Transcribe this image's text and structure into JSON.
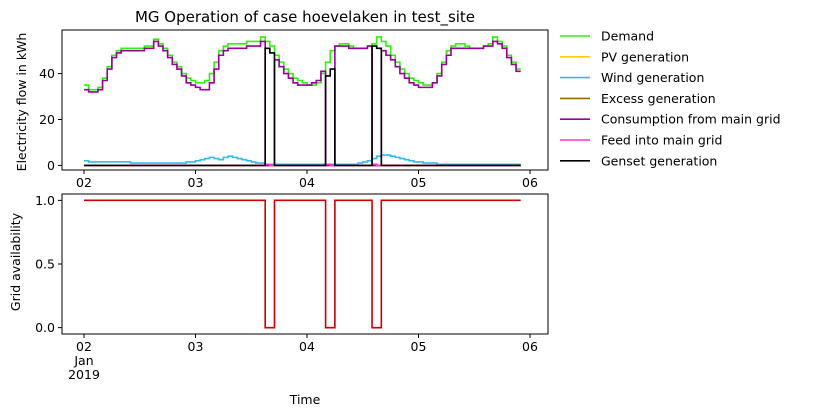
{
  "colors": {
    "Demand": "#33ee11",
    "PV generation": "#ffcc00",
    "Wind generation": "#33bbee",
    "Excess generation": "#996600",
    "Consumption from main grid": "#990099",
    "Feed into main grid": "#ff33cc",
    "Genset generation": "#000000",
    "Grid availability": "#cc0000"
  },
  "chart_data": [
    {
      "type": "line",
      "title": "MG Operation of case hoevelaken in test_site",
      "xlabel": "",
      "ylabel": "Electricity flow in kWh",
      "x_ticks": [
        "02",
        "03",
        "04",
        "05",
        "06"
      ],
      "ylim": [
        -2,
        59
      ],
      "y_ticks": [
        0,
        20,
        40
      ],
      "grid": false,
      "legend_placement": "outside-right",
      "x_start_day": 2,
      "x_step_hours": 1,
      "series": [
        {
          "name": "Demand",
          "values": [
            35,
            33,
            33,
            34,
            38,
            43,
            48,
            50,
            51,
            51,
            51,
            51,
            51,
            52,
            52,
            55,
            53,
            51,
            48,
            45,
            43,
            40,
            38,
            37,
            36,
            36,
            37,
            40,
            45,
            50,
            52,
            53,
            53,
            53,
            53,
            54,
            54,
            54,
            56,
            54,
            52,
            48,
            45,
            42,
            40,
            38,
            37,
            36,
            35,
            35,
            36,
            40,
            45,
            50,
            52,
            53,
            53,
            52,
            51,
            51,
            51,
            52,
            53,
            56,
            54,
            52,
            48,
            45,
            42,
            40,
            38,
            37,
            36,
            35,
            35,
            36,
            40,
            45,
            50,
            52,
            53,
            53,
            52,
            51,
            51,
            51,
            52,
            53,
            56,
            54,
            52,
            48,
            45,
            42
          ]
        },
        {
          "name": "PV generation",
          "values": [
            0,
            0,
            0,
            0,
            0,
            0,
            0,
            0,
            0,
            0,
            0,
            0,
            0,
            0,
            0,
            0,
            0,
            0,
            0,
            0,
            0,
            0,
            0,
            0,
            0,
            0,
            0,
            0,
            0,
            0,
            0,
            0,
            0,
            0,
            0,
            0,
            0,
            0,
            0,
            0,
            0,
            0,
            0,
            0,
            0,
            0,
            0,
            0,
            0,
            0,
            0,
            0,
            0,
            0,
            0,
            0,
            0,
            0,
            0,
            0,
            0,
            0,
            0,
            0,
            0,
            0,
            0,
            0,
            0,
            0,
            0,
            0,
            0,
            0,
            0,
            0,
            0,
            0,
            0,
            0,
            0,
            0,
            0,
            0,
            0,
            0,
            0,
            0,
            0,
            0,
            0,
            0,
            0,
            0
          ]
        },
        {
          "name": "Wind generation",
          "values": [
            2,
            1.5,
            1.5,
            1.5,
            1.5,
            1.5,
            1.5,
            1.5,
            1.5,
            1.5,
            1,
            1,
            1,
            1,
            1,
            1,
            1,
            1,
            1,
            1,
            1,
            1,
            1.5,
            1.5,
            2,
            2.5,
            3,
            3.5,
            3,
            2.5,
            3.5,
            4,
            3.5,
            3,
            2.5,
            2,
            1.5,
            1,
            1,
            0.5,
            0.5,
            0.5,
            0.5,
            0.5,
            0.5,
            0.5,
            0.5,
            0.5,
            0.5,
            0.5,
            0.5,
            0.5,
            0.5,
            0.5,
            0.5,
            0.5,
            0.5,
            0.5,
            0.5,
            1,
            1.5,
            2,
            3,
            4,
            4.5,
            4.5,
            4,
            3.5,
            3,
            2.5,
            2,
            1.5,
            1.5,
            1,
            1,
            1,
            0.5,
            0.5,
            0.5,
            0.5,
            0.5,
            0.5,
            0.5,
            0.5,
            0.5,
            0.5,
            0.5,
            0.5,
            0.5,
            0.5,
            0.5,
            0.5,
            0.5,
            0.5
          ]
        },
        {
          "name": "Excess generation",
          "values": [
            0,
            0,
            0,
            0,
            0,
            0,
            0,
            0,
            0,
            0,
            0,
            0,
            0,
            0,
            0,
            0,
            0,
            0,
            0,
            0,
            0,
            0,
            0,
            0,
            0,
            0,
            0,
            0,
            0,
            0,
            0,
            0,
            0,
            0,
            0,
            0,
            0,
            0,
            0,
            0,
            0,
            0,
            0,
            0,
            0,
            0,
            0,
            0,
            0,
            0,
            0,
            0,
            0,
            0,
            0,
            0,
            0,
            0,
            0,
            0,
            0,
            0,
            0,
            0,
            0,
            0,
            0,
            0,
            0,
            0,
            0,
            0,
            0,
            0,
            0,
            0,
            0,
            0,
            0,
            0,
            0,
            0,
            0,
            0,
            0,
            0,
            0,
            0,
            0,
            0,
            0,
            0,
            0,
            0
          ]
        },
        {
          "name": "Consumption from main grid",
          "values": [
            33,
            32,
            32,
            33,
            37,
            42,
            47,
            49,
            50,
            50,
            50,
            50,
            50,
            51,
            51,
            54,
            52,
            50,
            47,
            44,
            42,
            39,
            36,
            35,
            34,
            33,
            33,
            36,
            42,
            48,
            50,
            51,
            51,
            51,
            51,
            52,
            52,
            52,
            54,
            0,
            0,
            46,
            43,
            40,
            38,
            36,
            35,
            35,
            35,
            36,
            37,
            41,
            0,
            0,
            52,
            52,
            52,
            51,
            51,
            51,
            51,
            52,
            0,
            0,
            50,
            48,
            46,
            43,
            40,
            38,
            36,
            35,
            34,
            34,
            34,
            36,
            39,
            44,
            48,
            51,
            51,
            51,
            51,
            51,
            51,
            51,
            52,
            52,
            54,
            53,
            51,
            47,
            44,
            41
          ]
        },
        {
          "name": "Feed into main grid",
          "values": [
            0,
            0,
            0,
            0,
            0,
            0,
            0,
            0,
            0,
            0,
            0,
            0,
            0,
            0,
            0,
            0,
            0,
            0,
            0,
            0,
            0,
            0,
            0,
            0,
            0,
            0,
            0,
            0,
            0,
            0,
            0,
            0,
            0,
            0,
            0,
            0,
            0,
            0,
            0,
            0.5,
            0,
            0,
            0,
            0,
            0,
            0,
            0,
            0,
            0,
            0,
            0,
            0,
            0.5,
            0,
            0,
            0,
            0,
            0,
            0,
            0,
            0,
            0,
            0.5,
            0,
            0,
            0,
            0,
            0,
            0,
            0,
            0,
            0,
            0,
            0,
            0,
            0,
            0,
            0,
            0,
            0,
            0,
            0,
            0,
            0,
            0,
            0,
            0,
            0,
            0,
            0,
            0,
            0,
            0,
            0
          ]
        },
        {
          "name": "Genset generation",
          "values": [
            0,
            0,
            0,
            0,
            0,
            0,
            0,
            0,
            0,
            0,
            0,
            0,
            0,
            0,
            0,
            0,
            0,
            0,
            0,
            0,
            0,
            0,
            0,
            0,
            0,
            0,
            0,
            0,
            0,
            0,
            0,
            0,
            0,
            0,
            0,
            0,
            0,
            0,
            0,
            51,
            49,
            0,
            0,
            0,
            0,
            0,
            0,
            0,
            0,
            0,
            0,
            0,
            39,
            42,
            0,
            0,
            0,
            0,
            0,
            0,
            0,
            0,
            52,
            51,
            0,
            0,
            0,
            0,
            0,
            0,
            0,
            0,
            0,
            0,
            0,
            0,
            0,
            0,
            0,
            0,
            0,
            0,
            0,
            0,
            0,
            0,
            0,
            0,
            0,
            0,
            0,
            0,
            0,
            0
          ]
        }
      ]
    },
    {
      "type": "line",
      "title": "",
      "xlabel": "Time",
      "ylabel": "Grid availability",
      "x_ticks": [
        "02",
        "03",
        "04",
        "05",
        "06"
      ],
      "x_tick_sub": [
        "Jan",
        "2019"
      ],
      "ylim": [
        -0.05,
        1.05
      ],
      "y_ticks": [
        "0.0",
        "0.5",
        "1.0"
      ],
      "grid": false,
      "series": [
        {
          "name": "Grid availability",
          "values": [
            1,
            1,
            1,
            1,
            1,
            1,
            1,
            1,
            1,
            1,
            1,
            1,
            1,
            1,
            1,
            1,
            1,
            1,
            1,
            1,
            1,
            1,
            1,
            1,
            1,
            1,
            1,
            1,
            1,
            1,
            1,
            1,
            1,
            1,
            1,
            1,
            1,
            1,
            1,
            0,
            0,
            1,
            1,
            1,
            1,
            1,
            1,
            1,
            1,
            1,
            1,
            1,
            0,
            0,
            1,
            1,
            1,
            1,
            1,
            1,
            1,
            1,
            0,
            0,
            1,
            1,
            1,
            1,
            1,
            1,
            1,
            1,
            1,
            1,
            1,
            1,
            1,
            1,
            1,
            1,
            1,
            1,
            1,
            1,
            1,
            1,
            1,
            1,
            1,
            1,
            1,
            1,
            1,
            1
          ]
        }
      ]
    }
  ]
}
